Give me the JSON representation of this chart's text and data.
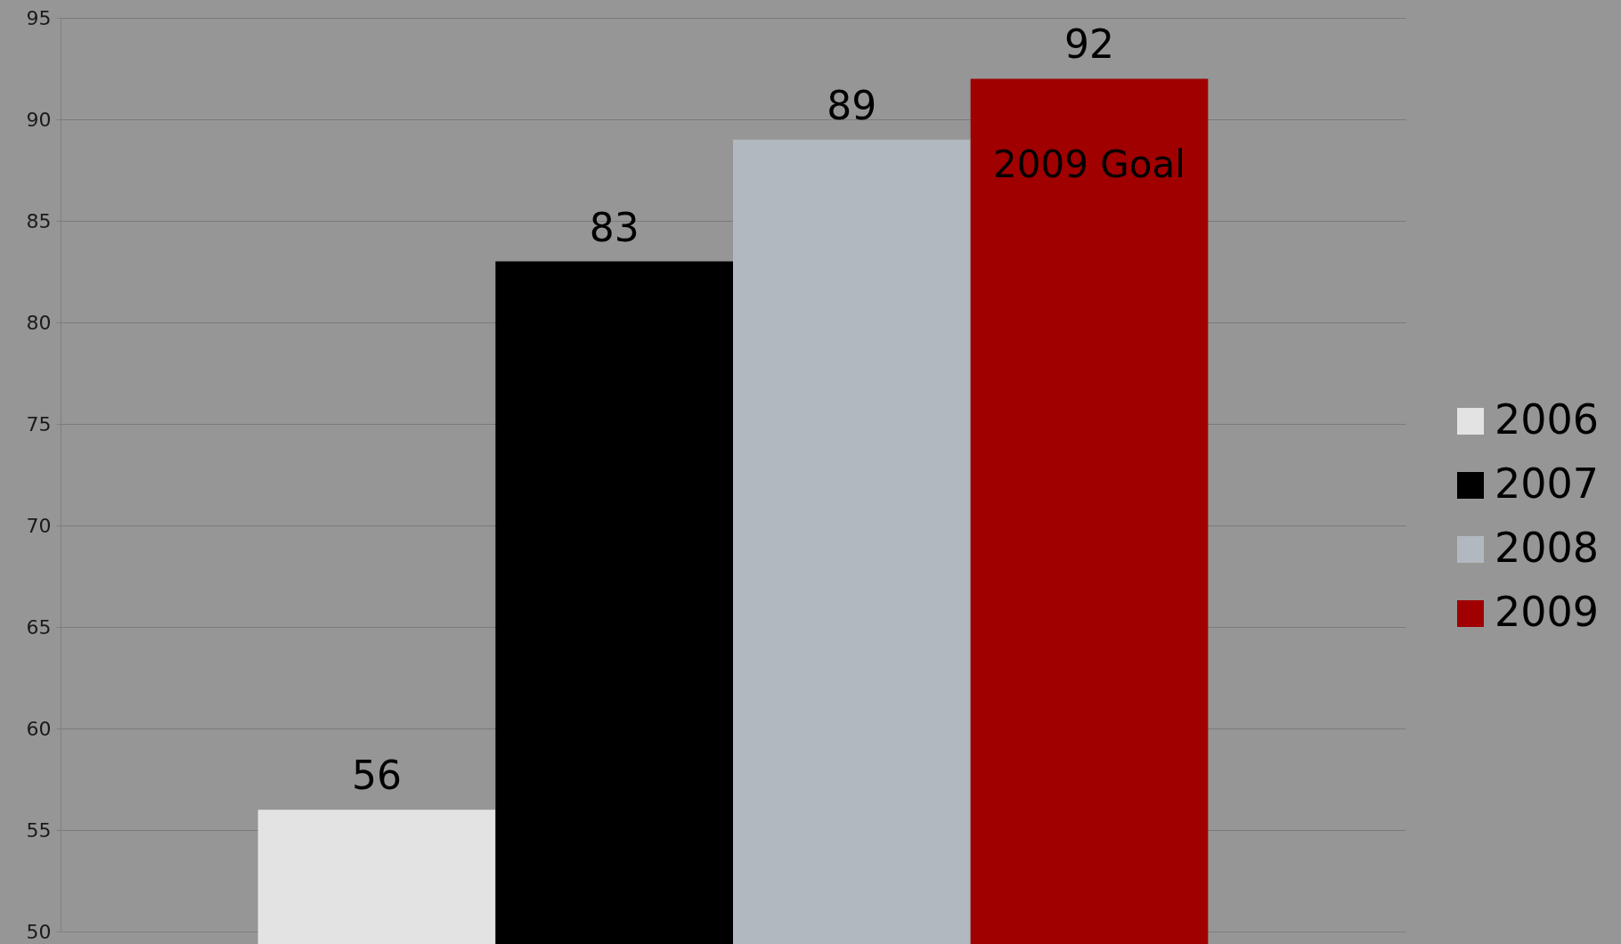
{
  "chart_data": {
    "type": "bar",
    "categories": [
      null
    ],
    "series": [
      {
        "name": "2006",
        "color": "#e3e3e3",
        "values": [
          56
        ]
      },
      {
        "name": "2007",
        "color": "#000000",
        "values": [
          83
        ]
      },
      {
        "name": "2008",
        "color": "#b2b8c0",
        "values": [
          89
        ]
      },
      {
        "name": "2009",
        "color": "#a00000",
        "values": [
          92
        ]
      }
    ],
    "ylim": [
      50,
      95
    ],
    "yticks": [
      50,
      55,
      60,
      65,
      70,
      75,
      80,
      85,
      90,
      95
    ],
    "grid": "y",
    "legend": "right",
    "data_labels": true,
    "annotations": [
      "2009 Goal"
    ]
  }
}
